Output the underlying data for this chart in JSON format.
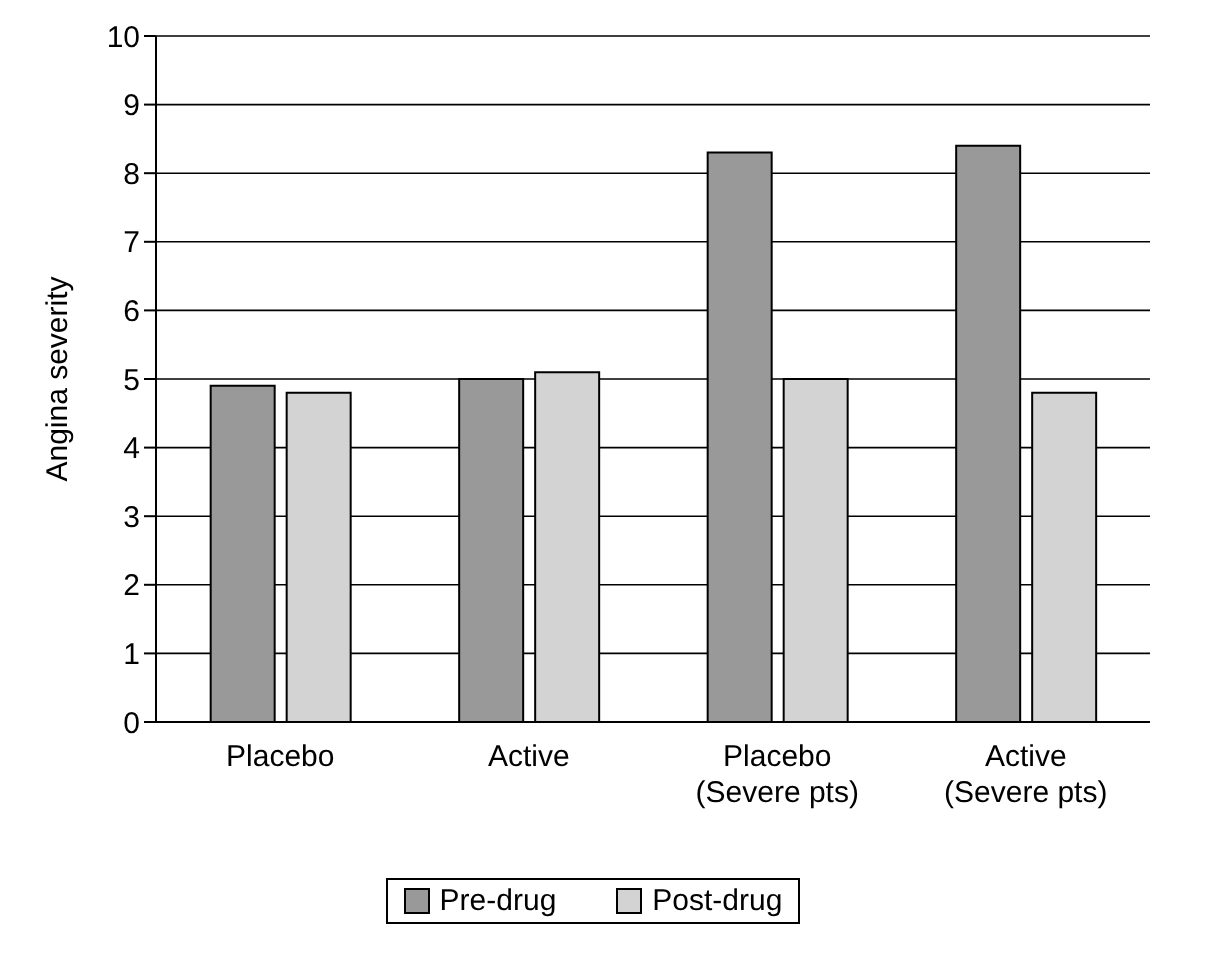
{
  "chart_data": {
    "type": "bar",
    "ylabel": "Angina severity",
    "categories": [
      "Placebo",
      "Active",
      "Placebo\n(Severe pts)",
      "Active\n(Severe pts)"
    ],
    "series": [
      {
        "name": "Pre-drug",
        "color": "#999999",
        "values": [
          4.9,
          5.0,
          8.3,
          8.4
        ]
      },
      {
        "name": "Post-drug",
        "color": "#d3d3d3",
        "values": [
          4.8,
          5.1,
          5.0,
          4.8
        ]
      }
    ],
    "ylim": [
      0,
      10
    ],
    "yticks": [
      0,
      1,
      2,
      3,
      4,
      5,
      6,
      7,
      8,
      9,
      10
    ],
    "grid": "y",
    "legend": "bottom"
  }
}
